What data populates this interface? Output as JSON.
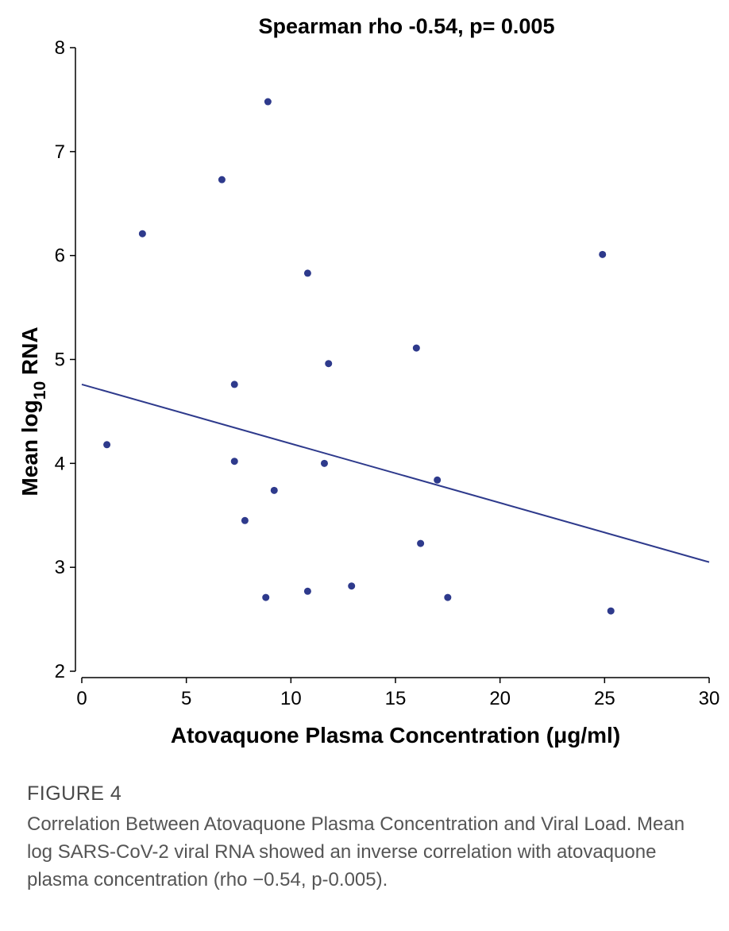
{
  "chart_data": {
    "type": "scatter",
    "title": "Spearman rho -0.54, p= 0.005",
    "xlabel": "Atovaquone Plasma Concentration (μg/ml)",
    "ylabel_main": "Mean log",
    "ylabel_sub": "10",
    "ylabel_tail": " RNA",
    "xlim": [
      0,
      30
    ],
    "ylim": [
      2,
      8
    ],
    "x_ticks": [
      0,
      5,
      10,
      15,
      20,
      25,
      30
    ],
    "y_ticks": [
      2,
      3,
      4,
      5,
      6,
      7,
      8
    ],
    "grid": false,
    "point_color": "#2e3a8c",
    "line_color": "#2e3a8c",
    "points": [
      {
        "x": 1.2,
        "y": 4.18
      },
      {
        "x": 2.9,
        "y": 6.21
      },
      {
        "x": 6.7,
        "y": 6.73
      },
      {
        "x": 7.3,
        "y": 4.76
      },
      {
        "x": 7.3,
        "y": 4.02
      },
      {
        "x": 7.8,
        "y": 3.45
      },
      {
        "x": 8.8,
        "y": 2.71
      },
      {
        "x": 8.9,
        "y": 7.48
      },
      {
        "x": 9.2,
        "y": 3.74
      },
      {
        "x": 10.8,
        "y": 5.83
      },
      {
        "x": 10.8,
        "y": 2.77
      },
      {
        "x": 11.6,
        "y": 4.0
      },
      {
        "x": 11.8,
        "y": 4.96
      },
      {
        "x": 12.9,
        "y": 2.82
      },
      {
        "x": 16.0,
        "y": 5.11
      },
      {
        "x": 16.2,
        "y": 3.23
      },
      {
        "x": 17.0,
        "y": 3.84
      },
      {
        "x": 17.5,
        "y": 2.71
      },
      {
        "x": 24.9,
        "y": 6.01
      },
      {
        "x": 25.3,
        "y": 2.58
      }
    ],
    "fit_line": {
      "x": [
        0,
        30
      ],
      "y": [
        4.76,
        3.05
      ]
    }
  },
  "caption": {
    "label": "FIGURE 4",
    "text": "Correlation Between Atovaquone Plasma Concentration and Viral Load. Mean log SARS-CoV-2 viral RNA showed an inverse correlation with atovaquone plasma concentration (rho −0.54, p-0.005)."
  }
}
